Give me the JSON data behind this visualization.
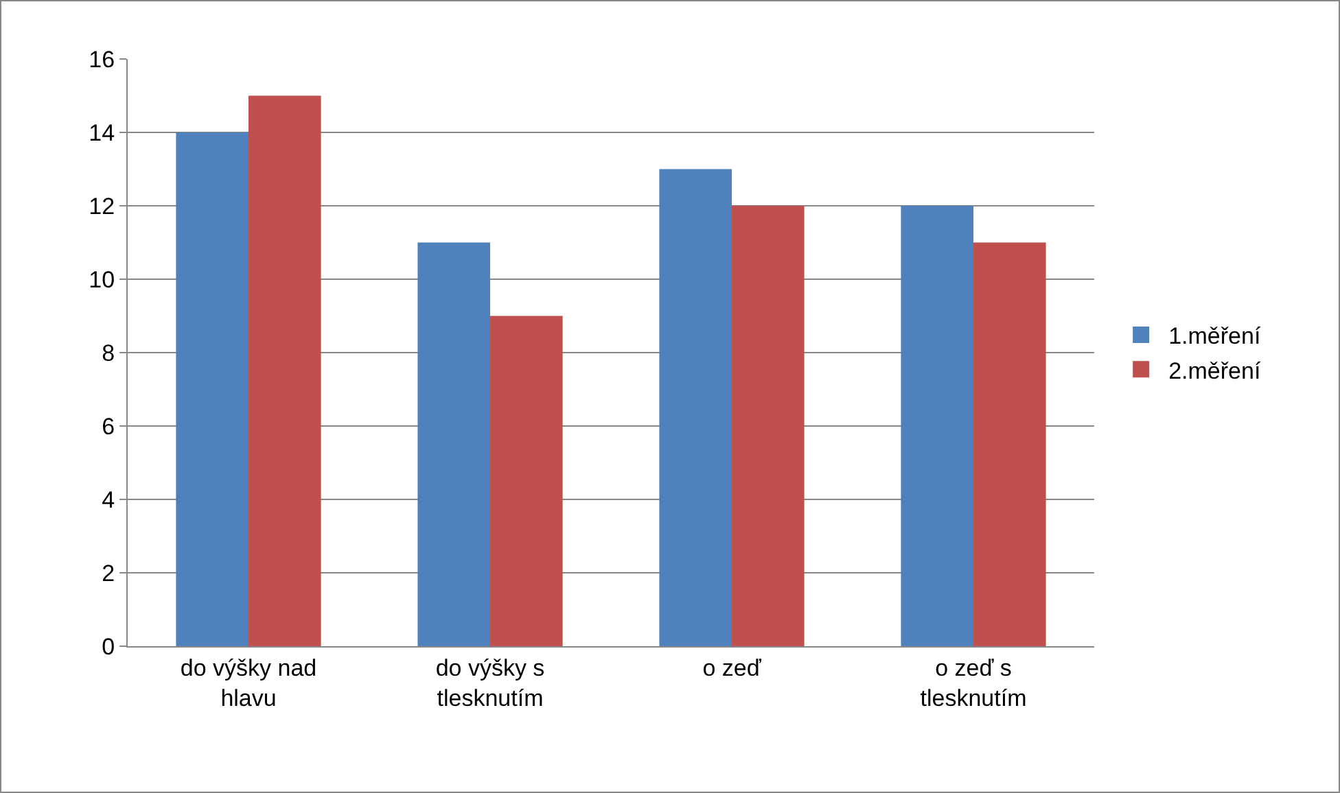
{
  "chart_data": {
    "type": "bar",
    "categories": [
      "do výšky nad hlavu",
      "do výšky s tlesknutím",
      "o zeď",
      "o zeď s tlesknutím"
    ],
    "series": [
      {
        "name": "1.měření",
        "color": "#4f81bd",
        "values": [
          14,
          11,
          13,
          12
        ]
      },
      {
        "name": "2.měření",
        "color": "#c0504d",
        "values": [
          15,
          9,
          12,
          11
        ]
      }
    ],
    "ylim": [
      0,
      16
    ],
    "yticks": [
      0,
      2,
      4,
      6,
      8,
      10,
      12,
      14,
      16
    ],
    "grid": "y",
    "legend": "right"
  }
}
